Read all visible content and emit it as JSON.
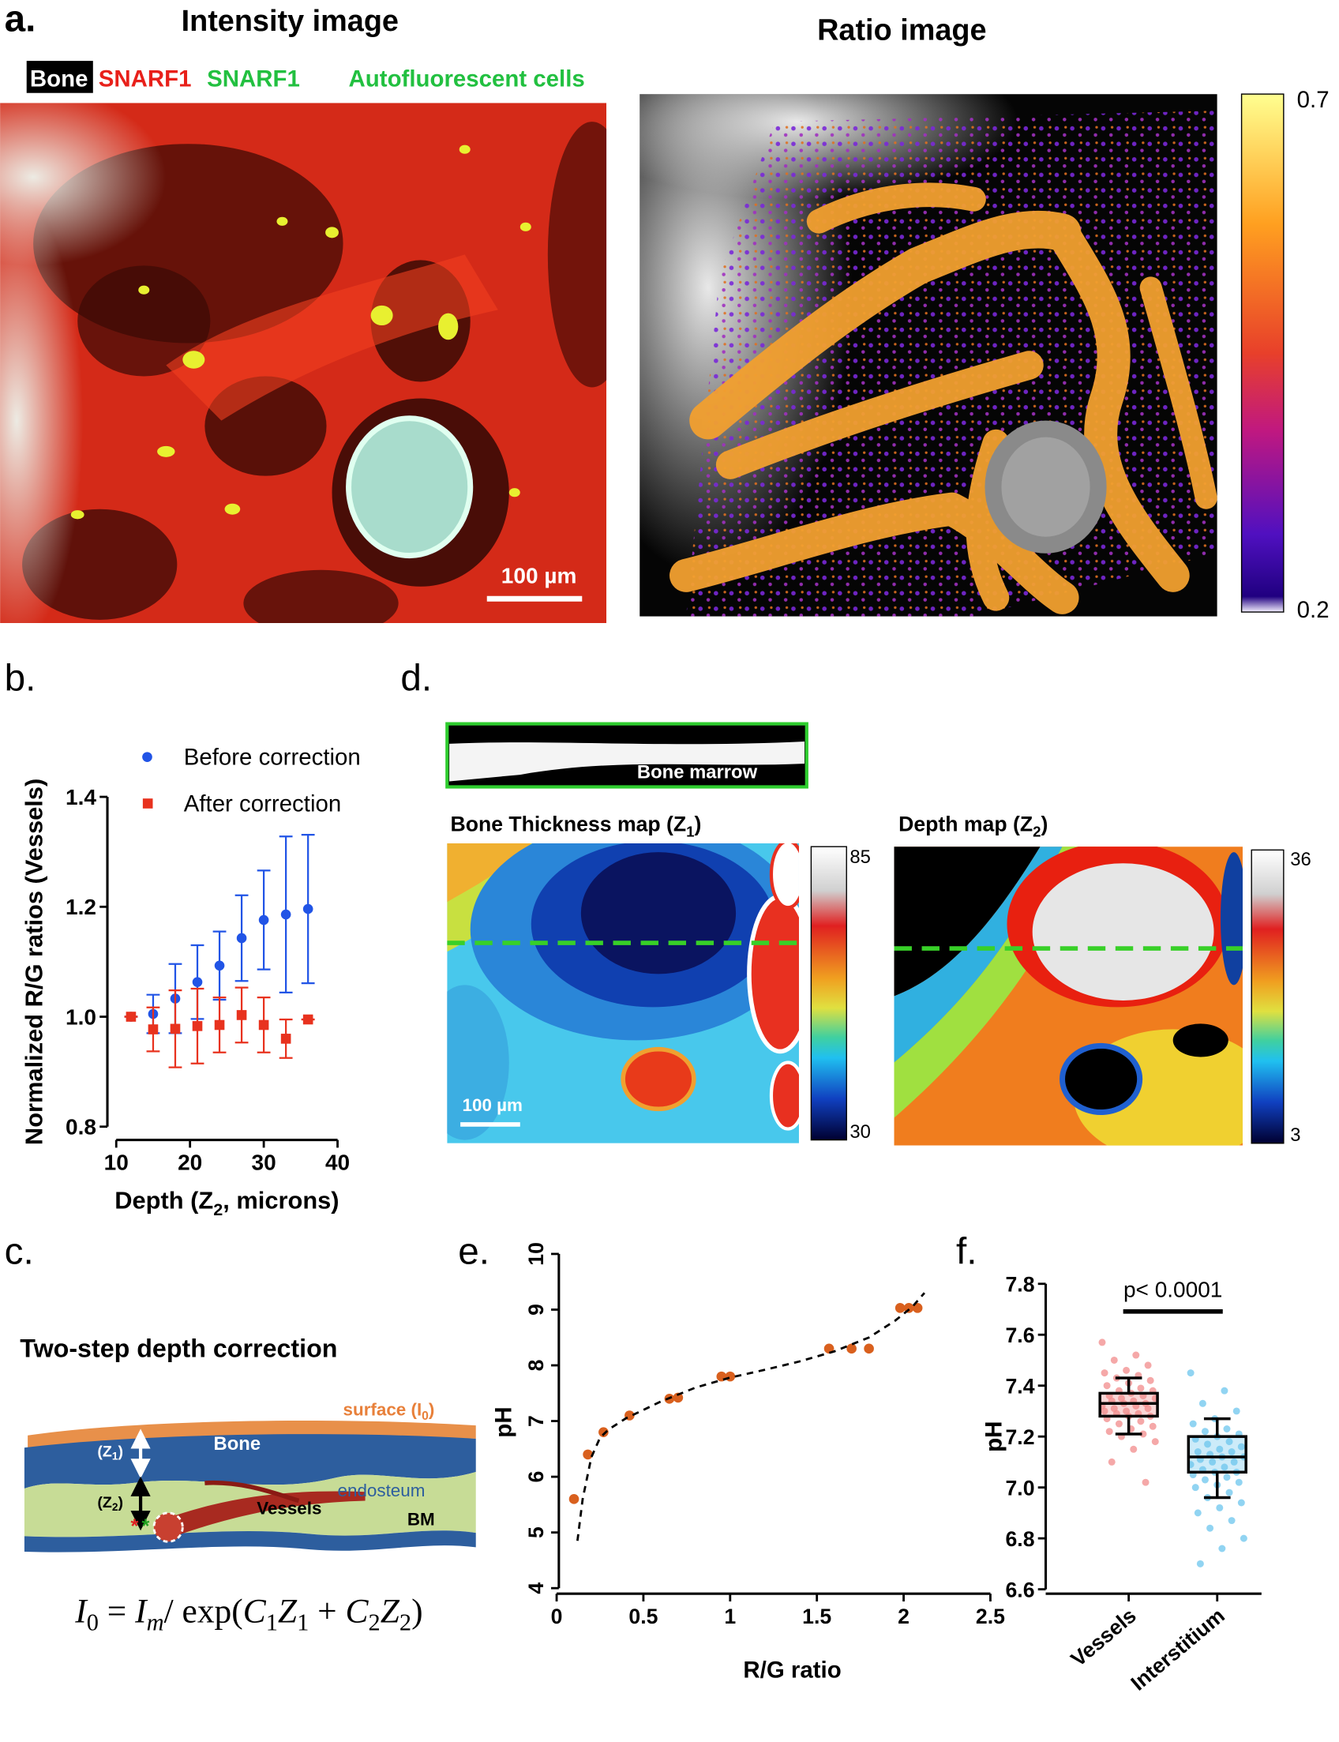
{
  "panel_labels": [
    "a.",
    "b.",
    "c.",
    "d.",
    "e.",
    "f."
  ],
  "panel_a": {
    "intensity_title": "Intensity image",
    "ratio_title": "Ratio image",
    "channels": [
      "Bone",
      "SNARF1",
      "SNARF1",
      "Autofluorescent cells"
    ],
    "scale_bar": "100 µm",
    "colorbar": {
      "max": 0.7,
      "min": 0.2
    }
  },
  "panel_c": {
    "title": "Two-step depth correction",
    "labels": {
      "surface": [
        "surface (I",
        "0",
        ")"
      ],
      "bone": "Bone",
      "z1": [
        "(Z",
        "1",
        ")"
      ],
      "z2": [
        "(Z",
        "2",
        ")"
      ],
      "endosteum": "endosteum",
      "vessels": "Vessels",
      "bm": "BM"
    },
    "equation": [
      "I",
      "0",
      " = ",
      "I",
      "m",
      "/ exp(",
      "C",
      "1",
      "Z",
      "1",
      " + ",
      "C",
      "2",
      "Z",
      "2",
      ")"
    ]
  },
  "panel_d": {
    "inset_label": "Bone marrow",
    "thickness_title": [
      "Bone Thickness map (Z",
      "1",
      ")"
    ],
    "depth_title": [
      "Depth map (Z",
      "2",
      ")"
    ],
    "scale_bar": "100 µm",
    "thickness_colorbar": {
      "max": 85,
      "min": 30
    },
    "depth_colorbar": {
      "max": 36,
      "min": 3
    }
  },
  "chart_data": [
    {
      "type": "scatter",
      "xlabel": [
        "Depth (Z",
        "2",
        ", microns)"
      ],
      "ylabel": "Normalized R/G ratios (Vessels)",
      "x": [
        12,
        15,
        18,
        21,
        24,
        27,
        30,
        33,
        36
      ],
      "series": [
        {
          "name": "Before correction",
          "color": "#2154e6",
          "marker": "circle",
          "values": [
            1.0,
            1.005,
            1.033,
            1.063,
            1.093,
            1.143,
            1.176,
            1.186,
            1.196
          ],
          "errors": [
            0,
            0.035,
            0.063,
            0.067,
            0.062,
            0.078,
            0.09,
            0.142,
            0.135
          ]
        },
        {
          "name": "After correction",
          "color": "#e8321e",
          "marker": "square",
          "values": [
            1.0,
            0.977,
            0.978,
            0.983,
            0.985,
            1.003,
            0.985,
            0.96,
            0.995
          ],
          "errors": [
            0,
            0.04,
            0.07,
            0.068,
            0.05,
            0.05,
            0.05,
            0.035,
            0
          ]
        }
      ],
      "xlim": [
        10,
        40
      ],
      "xticks": [
        10,
        20,
        30,
        40
      ],
      "ylim": [
        0.8,
        1.4
      ],
      "yticks": [
        0.8,
        {
          "value": 1,
          "label": "1.0"
        },
        1.2,
        1.4
      ]
    },
    {
      "type": "scatter",
      "xlabel": "R/G ratio",
      "ylabel": "pH",
      "series": [
        {
          "mode": "markers",
          "color": "#d9601e",
          "x": [
            0.1,
            0.18,
            0.27,
            0.42,
            0.65,
            0.7,
            0.95,
            1.0,
            1.57,
            1.7,
            1.8,
            1.98,
            2.03,
            2.08
          ],
          "values": [
            5.6,
            6.4,
            6.8,
            7.1,
            7.4,
            7.42,
            7.8,
            7.8,
            8.3,
            8.3,
            8.3,
            9.03,
            9.03,
            9.03
          ]
        },
        {
          "mode": "line",
          "line_style": "dashed",
          "color": "#000000",
          "x": [
            0.12,
            0.15,
            0.2,
            0.25,
            0.3,
            0.4,
            0.6,
            0.8,
            1.0,
            1.2,
            1.4,
            1.6,
            1.8,
            1.95,
            2.05,
            2.12
          ],
          "values": [
            4.85,
            5.6,
            6.35,
            6.7,
            6.85,
            7.05,
            7.35,
            7.6,
            7.78,
            7.92,
            8.07,
            8.25,
            8.5,
            8.8,
            9.05,
            9.3
          ]
        }
      ],
      "xlim": [
        0,
        2.5
      ],
      "xticks": [
        0,
        0.5,
        1,
        1.5,
        2,
        2.5
      ],
      "ylim": [
        4,
        10
      ],
      "yticks": [
        4,
        5,
        6,
        7,
        8,
        9,
        10
      ]
    },
    {
      "type": "box",
      "ylabel": "pH",
      "annotation": "p< 0.0001",
      "categories": [
        "Vessels",
        "Interstitium"
      ],
      "colors": [
        "#f28b8b",
        "#6cc6ee"
      ],
      "boxes": [
        {
          "min": 7.21,
          "q1": 7.28,
          "median": 7.33,
          "q3": 7.37,
          "max": 7.43
        },
        {
          "min": 6.96,
          "q1": 7.06,
          "median": 7.12,
          "q3": 7.2,
          "max": 7.27
        }
      ],
      "points": [
        [
          7.57,
          7.52,
          7.5,
          7.48,
          7.46,
          7.45,
          7.44,
          7.43,
          7.42,
          7.41,
          7.4,
          7.39,
          7.38,
          7.38,
          7.37,
          7.36,
          7.36,
          7.35,
          7.35,
          7.34,
          7.34,
          7.33,
          7.33,
          7.32,
          7.32,
          7.31,
          7.31,
          7.3,
          7.3,
          7.29,
          7.29,
          7.28,
          7.28,
          7.27,
          7.26,
          7.25,
          7.24,
          7.23,
          7.22,
          7.21,
          7.2,
          7.18,
          7.15,
          7.1,
          7.02
        ],
        [
          7.45,
          7.38,
          7.33,
          7.3,
          7.27,
          7.25,
          7.23,
          7.22,
          7.21,
          7.2,
          7.19,
          7.18,
          7.17,
          7.16,
          7.15,
          7.14,
          7.14,
          7.13,
          7.12,
          7.12,
          7.11,
          7.1,
          7.1,
          7.09,
          7.08,
          7.07,
          7.06,
          7.06,
          7.05,
          7.04,
          7.03,
          7.02,
          7.01,
          7.0,
          6.98,
          6.96,
          6.94,
          6.92,
          6.9,
          6.87,
          6.84,
          6.8,
          6.76,
          6.7
        ]
      ],
      "ylim": [
        6.6,
        7.8
      ],
      "yticks": [
        6.6,
        6.8,
        {
          "value": 7,
          "label": "7.0"
        },
        7.2,
        7.4,
        7.6,
        7.8
      ]
    }
  ]
}
